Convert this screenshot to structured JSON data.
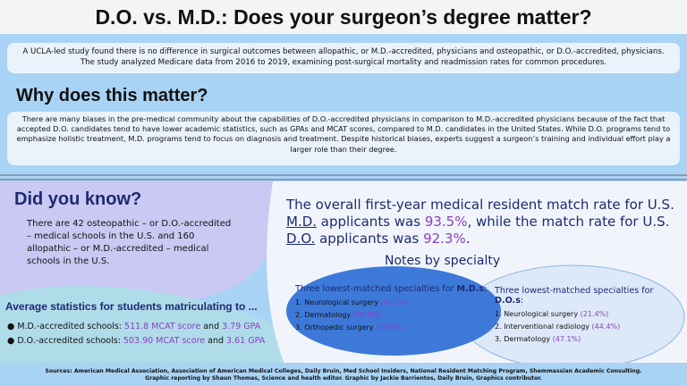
{
  "header": {
    "title": "D.O. vs. M.D.: Does your surgeon’s degree matter?"
  },
  "intro": "A UCLA-led study found there is no difference in surgical outcomes between allopathic,  or M.D.-accredited, physicians and osteopathic, or D.O.-accredited, physicians. The study analyzed Medicare data from 2016 to 2019, examining post-surgical mortality and readmission rates for common procedures.",
  "why": {
    "heading": "Why does this matter?",
    "body": "There are many biases in the pre-medical community about the capabilities of D.O.-accredited physicians in comparison to M.D.-accredited physicians because of the fact that accepted D.O. candidates tend to have lower academic statistics, such as GPAs and MCAT scores, compared to M.D. candidates in the United States. While D.O. programs tend to emphasize holistic treatment, M.D. programs tend to focus on diagnosis and treatment. Despite historical biases, experts suggest a surgeon’s training and individual effort play a larger role than their degree."
  },
  "did_you_know": {
    "heading": "Did you know?",
    "body": "There are 42 osteopathic –  or D.O.-accredited – medical schools in the U.S. and 160 allopathic – or M.D.-accredited – medical schools in the U.S."
  },
  "match_rate": {
    "segments": [
      "The overall first-year medical resident match rate for U.S. ",
      "M.D.",
      " applicants was ",
      "93.5%",
      ", while the match rate for U.S. ",
      "D.O.",
      " applicants was ",
      "92.3%",
      "."
    ]
  },
  "averages": {
    "heading": "Average statistics for students matriculating to ...",
    "rows": [
      {
        "school": "M.D.-accredited schools: ",
        "mcat": "511.8 MCAT score",
        "joiner": " and ",
        "gpa": "3.79 GPA"
      },
      {
        "school": "D.O.-accredited schools: ",
        "mcat": "503.90 MCAT score",
        "joiner": " and ",
        "gpa": "3.61 GPA"
      }
    ]
  },
  "notes": {
    "heading": "Notes by specialty",
    "md": {
      "heading": [
        "Three lowest-matched specialties for ",
        "M.D.s",
        ":"
      ],
      "items": [
        {
          "number": "1.",
          "name": "Neurological surgery",
          "rate": "(68.7%)"
        },
        {
          "number": "2.",
          "name": "Dermatology",
          "rate": "(70.5%)"
        },
        {
          "number": "3.",
          "name": "Orthopedic surgery",
          "rate": "(73.1%)"
        }
      ]
    },
    "do": {
      "heading": [
        "Three lowest-matched specialties for ",
        "D.O.s",
        ":"
      ],
      "items": [
        {
          "number": "1.",
          "name": "Neurological surgery",
          "rate": "(21.4%)"
        },
        {
          "number": "2.",
          "name": "Interventional radiology",
          "rate": "(44.4%)"
        },
        {
          "number": "3.",
          "name": "Dermatology",
          "rate": "(47.1%)"
        }
      ]
    }
  },
  "footer": {
    "sources": "Sources: American Medical Association, Association of American Medical Colleges, Daily Bruin, Med School Insiders, National Resident Matching Program, Shemmassian Academic Consulting.",
    "credits": "Graphic reporting by Shaun Thomas, Science and health editor. Graphic by Jackie Barrientos, Daily Bruin, Graphics contributor."
  }
}
